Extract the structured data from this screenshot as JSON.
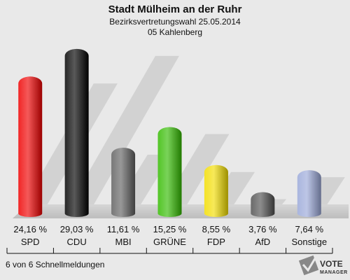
{
  "chart_data": {
    "type": "bar",
    "title": "Stadt Mülheim an der Ruhr",
    "subtitle": "Bezirksvertretungswahl 25.05.2014",
    "subtitle2": "05 Kahlenberg",
    "categories": [
      "SPD",
      "CDU",
      "MBI",
      "GRÜNE",
      "FDP",
      "AfD",
      "Sonstige"
    ],
    "values": [
      24.16,
      29.03,
      11.61,
      15.25,
      8.55,
      3.76,
      7.64
    ],
    "value_labels": [
      "24,16 %",
      "29,03 %",
      "11,61 %",
      "15,25 %",
      "8,55 %",
      "3,76 %",
      "7,64 %"
    ],
    "colors": [
      "#ee0000",
      "#000000",
      "#606060",
      "#33bb00",
      "#f2dd00",
      "#505050",
      "#9aa8d8"
    ],
    "ylim": [
      0,
      30
    ]
  },
  "footer": {
    "text": "6 von 6 Schnellmeldungen"
  },
  "logo": {
    "line1": "VOTE",
    "line2": "MANAGER"
  }
}
